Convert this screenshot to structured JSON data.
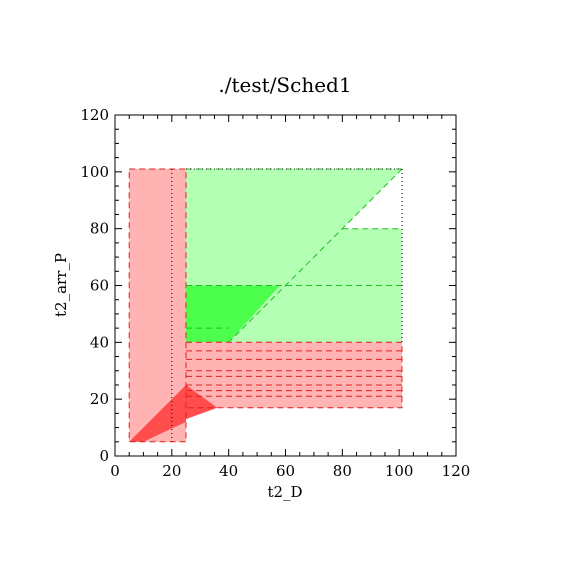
{
  "chart_data": {
    "type": "area",
    "title": "./test/Sched1",
    "xlabel": "t2_D",
    "ylabel": "t2_arr_P",
    "xlim": [
      0,
      120
    ],
    "ylim": [
      0,
      120
    ],
    "x_ticks": [
      "0",
      "20",
      "40",
      "60",
      "80",
      "100",
      "120"
    ],
    "y_ticks": [
      "0",
      "20",
      "40",
      "60",
      "80",
      "100",
      "120"
    ],
    "colors": {
      "red_light": "#ffb3b3",
      "red_strong": "#ff4d4d",
      "red_line": "#e02020",
      "green_light": "#b3ffb3",
      "green_strong": "#4dff4d",
      "green_line": "#20c020",
      "frame": "#000000"
    },
    "regions": [
      {
        "id": "red-vertical-band",
        "fill": "red_light",
        "points": [
          [
            5,
            101
          ],
          [
            25,
            101
          ],
          [
            25,
            5
          ],
          [
            5,
            5
          ]
        ]
      },
      {
        "id": "green-upper-region",
        "fill": "green_light",
        "points": [
          [
            25,
            101
          ],
          [
            101,
            101
          ],
          [
            80,
            80
          ],
          [
            101,
            80
          ],
          [
            101,
            40
          ],
          [
            25,
            40
          ]
        ]
      },
      {
        "id": "green-dark-block",
        "fill": "green_strong",
        "points": [
          [
            25,
            60
          ],
          [
            58,
            60
          ],
          [
            40,
            40
          ],
          [
            25,
            40
          ]
        ]
      },
      {
        "id": "red-horizontal-band",
        "fill": "red_light",
        "points": [
          [
            25,
            40
          ],
          [
            101,
            40
          ],
          [
            101,
            17
          ],
          [
            25,
            17
          ]
        ]
      },
      {
        "id": "red-dark-wedge",
        "fill": "red_strong",
        "points": [
          [
            5,
            5
          ],
          [
            10,
            5
          ],
          [
            25,
            12
          ],
          [
            25,
            25
          ],
          [
            5,
            5
          ]
        ]
      },
      {
        "id": "red-dark-tip",
        "fill": "red_strong",
        "points": [
          [
            25,
            25
          ],
          [
            36,
            17
          ],
          [
            25,
            13
          ]
        ]
      }
    ],
    "dashed_lines": [
      {
        "color": "red_line",
        "points": [
          [
            5,
            101
          ],
          [
            25,
            101
          ],
          [
            25,
            5
          ],
          [
            5,
            5
          ],
          [
            5,
            101
          ]
        ]
      },
      {
        "color": "red_line",
        "points": [
          [
            25,
            40
          ],
          [
            101,
            40
          ],
          [
            101,
            17
          ],
          [
            25,
            17
          ]
        ]
      },
      {
        "color": "red_line",
        "points": [
          [
            25,
            37
          ],
          [
            101,
            37
          ]
        ]
      },
      {
        "color": "red_line",
        "points": [
          [
            25,
            34
          ],
          [
            101,
            34
          ]
        ]
      },
      {
        "color": "red_line",
        "points": [
          [
            25,
            30
          ],
          [
            101,
            30
          ]
        ]
      },
      {
        "color": "red_line",
        "points": [
          [
            25,
            28
          ],
          [
            101,
            28
          ]
        ]
      },
      {
        "color": "red_line",
        "points": [
          [
            25,
            25
          ],
          [
            101,
            25
          ]
        ]
      },
      {
        "color": "red_line",
        "points": [
          [
            25,
            23
          ],
          [
            101,
            23
          ]
        ]
      },
      {
        "color": "red_line",
        "points": [
          [
            25,
            21
          ],
          [
            101,
            21
          ]
        ]
      },
      {
        "color": "green_line",
        "points": [
          [
            25,
            101
          ],
          [
            101,
            101
          ]
        ]
      },
      {
        "color": "green_line",
        "points": [
          [
            101,
            101
          ],
          [
            40,
            40
          ]
        ]
      },
      {
        "color": "green_line",
        "points": [
          [
            80,
            80
          ],
          [
            101,
            80
          ]
        ]
      },
      {
        "color": "green_line",
        "points": [
          [
            25,
            60
          ],
          [
            101,
            60
          ]
        ]
      },
      {
        "color": "green_line",
        "points": [
          [
            25,
            45
          ],
          [
            40,
            45
          ]
        ]
      }
    ],
    "dotted_lines": [
      {
        "points": [
          [
            20,
            101
          ],
          [
            20,
            5
          ]
        ]
      },
      {
        "points": [
          [
            25,
            101
          ],
          [
            101,
            101
          ]
        ]
      },
      {
        "points": [
          [
            101,
            101
          ],
          [
            101,
            40
          ]
        ]
      }
    ]
  }
}
